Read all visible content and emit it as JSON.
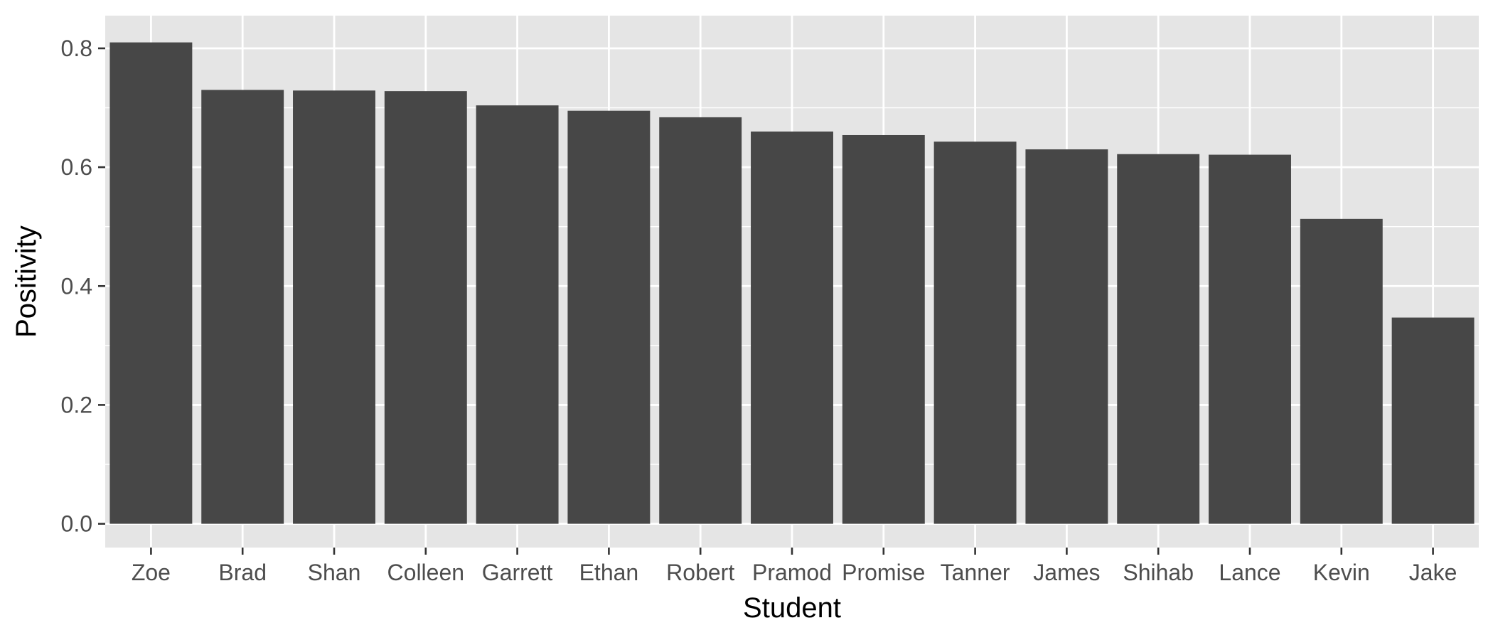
{
  "chart_data": {
    "type": "bar",
    "title": "",
    "xlabel": "Student",
    "ylabel": "Positivity",
    "categories": [
      "Zoe",
      "Brad",
      "Shan",
      "Colleen",
      "Garrett",
      "Ethan",
      "Robert",
      "Pramod",
      "Promise",
      "Tanner",
      "James",
      "Shihab",
      "Lance",
      "Kevin",
      "Jake"
    ],
    "values": [
      0.81,
      0.73,
      0.729,
      0.728,
      0.704,
      0.695,
      0.684,
      0.66,
      0.654,
      0.643,
      0.63,
      0.622,
      0.621,
      0.513,
      0.347
    ],
    "ylim": [
      -0.04,
      0.855
    ],
    "yticks": [
      0.0,
      0.2,
      0.4,
      0.6,
      0.8
    ],
    "ytick_labels": [
      "0.0",
      "0.2",
      "0.4",
      "0.6",
      "0.8"
    ],
    "grid": true,
    "legend": "none",
    "colors": {
      "panel_background": "#e5e5e5",
      "grid_line": "#ffffff",
      "bar_fill": "#474747",
      "tick_mark": "#333333"
    }
  }
}
